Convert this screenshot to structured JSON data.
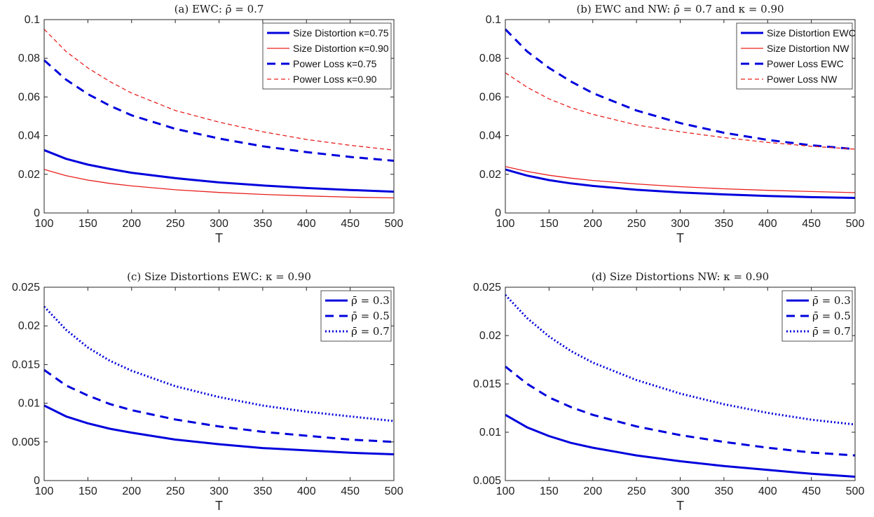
{
  "chart_data": [
    {
      "type": "line",
      "title": "(a) EWC: ρ̄ = 0.7",
      "xlabel": "T",
      "ylabel": "",
      "x": [
        100,
        125,
        150,
        175,
        200,
        250,
        300,
        350,
        400,
        450,
        500
      ],
      "xlim": [
        100,
        500
      ],
      "ylim": [
        0,
        0.1
      ],
      "xticks": [
        "100",
        "150",
        "200",
        "250",
        "300",
        "350",
        "400",
        "450",
        "500"
      ],
      "yticks": [
        "0",
        "0.02",
        "0.04",
        "0.06",
        "0.08",
        "0.1"
      ],
      "legend_position": "top-right",
      "series": [
        {
          "name": "Size Distortion κ=0.75",
          "color": "#0000dd",
          "style": "solid-thick",
          "values": [
            0.0325,
            0.028,
            0.025,
            0.0228,
            0.0208,
            0.018,
            0.0158,
            0.0142,
            0.0129,
            0.0119,
            0.011
          ]
        },
        {
          "name": "Size Distortion κ=0.90",
          "color": "#e8201e",
          "style": "solid-thin",
          "values": [
            0.0225,
            0.0193,
            0.017,
            0.0153,
            0.014,
            0.012,
            0.0106,
            0.0096,
            0.0088,
            0.0082,
            0.0078
          ]
        },
        {
          "name": "Power Loss κ=0.75",
          "color": "#0000dd",
          "style": "dashed-thick",
          "values": [
            0.079,
            0.069,
            0.0615,
            0.0555,
            0.0505,
            0.0435,
            0.0385,
            0.0345,
            0.0315,
            0.029,
            0.027
          ]
        },
        {
          "name": "Power Loss κ=0.90",
          "color": "#e8201e",
          "style": "dashed-thin",
          "values": [
            0.095,
            0.0835,
            0.075,
            0.068,
            0.062,
            0.053,
            0.047,
            0.042,
            0.038,
            0.035,
            0.0325
          ]
        }
      ]
    },
    {
      "type": "line",
      "title": "(b) EWC and NW: ρ̄ = 0.7 and κ = 0.90",
      "xlabel": "T",
      "ylabel": "",
      "x": [
        100,
        125,
        150,
        175,
        200,
        250,
        300,
        350,
        400,
        450,
        500
      ],
      "xlim": [
        100,
        500
      ],
      "ylim": [
        0,
        0.1
      ],
      "xticks": [
        "100",
        "150",
        "200",
        "250",
        "300",
        "350",
        "400",
        "450",
        "500"
      ],
      "yticks": [
        "0",
        "0.02",
        "0.04",
        "0.06",
        "0.08",
        "0.1"
      ],
      "legend_position": "top-right",
      "series": [
        {
          "name": "Size Distortion EWC",
          "color": "#0000dd",
          "style": "solid-thick",
          "values": [
            0.0225,
            0.0193,
            0.017,
            0.0153,
            0.014,
            0.012,
            0.0106,
            0.0096,
            0.0088,
            0.0082,
            0.0078
          ]
        },
        {
          "name": "Size Distortion NW",
          "color": "#e8201e",
          "style": "solid-thin",
          "values": [
            0.024,
            0.0215,
            0.0195,
            0.018,
            0.0168,
            0.015,
            0.0136,
            0.0125,
            0.0117,
            0.0111,
            0.0105
          ]
        },
        {
          "name": "Power Loss EWC",
          "color": "#0000dd",
          "style": "dashed-thick",
          "values": [
            0.095,
            0.0835,
            0.075,
            0.068,
            0.062,
            0.053,
            0.0465,
            0.0415,
            0.0378,
            0.035,
            0.033
          ]
        },
        {
          "name": "Power Loss NW",
          "color": "#e8201e",
          "style": "dashed-thin",
          "values": [
            0.0725,
            0.065,
            0.059,
            0.0545,
            0.051,
            0.0455,
            0.042,
            0.039,
            0.0365,
            0.0345,
            0.033
          ]
        }
      ]
    },
    {
      "type": "line",
      "title": "(c) Size Distortions EWC: κ = 0.90",
      "xlabel": "T",
      "ylabel": "",
      "x": [
        100,
        125,
        150,
        175,
        200,
        250,
        300,
        350,
        400,
        450,
        500
      ],
      "xlim": [
        100,
        500
      ],
      "ylim": [
        0,
        0.025
      ],
      "xticks": [
        "100",
        "150",
        "200",
        "250",
        "300",
        "350",
        "400",
        "450",
        "500"
      ],
      "yticks": [
        "0",
        "0.005",
        "0.01",
        "0.015",
        "0.02",
        "0.025"
      ],
      "legend_position": "top-right",
      "series": [
        {
          "name": "ρ̄ = 0.3",
          "color": "#0000dd",
          "style": "solid-thick",
          "values": [
            0.0097,
            0.0083,
            0.0074,
            0.0067,
            0.0062,
            0.0053,
            0.0047,
            0.0042,
            0.0039,
            0.0036,
            0.0034
          ]
        },
        {
          "name": "ρ̄ = 0.5",
          "color": "#0000dd",
          "style": "dashed-thick",
          "values": [
            0.0143,
            0.0123,
            0.011,
            0.0099,
            0.0091,
            0.0079,
            0.007,
            0.0063,
            0.0058,
            0.0053,
            0.005
          ]
        },
        {
          "name": "ρ̄ = 0.7",
          "color": "#0000dd",
          "style": "dotted-thick",
          "values": [
            0.0225,
            0.0195,
            0.0172,
            0.0155,
            0.0142,
            0.0122,
            0.0108,
            0.0097,
            0.0089,
            0.0083,
            0.0077
          ]
        }
      ]
    },
    {
      "type": "line",
      "title": "(d) Size Distortions NW: κ = 0.90",
      "xlabel": "T",
      "ylabel": "",
      "x": [
        100,
        125,
        150,
        175,
        200,
        250,
        300,
        350,
        400,
        450,
        500
      ],
      "xlim": [
        100,
        500
      ],
      "ylim": [
        0.005,
        0.025
      ],
      "xticks": [
        "100",
        "150",
        "200",
        "250",
        "300",
        "350",
        "400",
        "450",
        "500"
      ],
      "yticks": [
        "0.005",
        "0.01",
        "0.015",
        "0.02",
        "0.025"
      ],
      "legend_position": "top-right",
      "series": [
        {
          "name": "ρ̄ = 0.3",
          "color": "#0000dd",
          "style": "solid-thick",
          "values": [
            0.0118,
            0.0105,
            0.0096,
            0.0089,
            0.0084,
            0.0076,
            0.007,
            0.0065,
            0.0061,
            0.0057,
            0.0054
          ]
        },
        {
          "name": "ρ̄ = 0.5",
          "color": "#0000dd",
          "style": "dashed-thick",
          "values": [
            0.0168,
            0.015,
            0.0136,
            0.0126,
            0.0118,
            0.0106,
            0.0097,
            0.009,
            0.0084,
            0.0079,
            0.0076
          ]
        },
        {
          "name": "ρ̄ = 0.7",
          "color": "#0000dd",
          "style": "dotted-thick",
          "values": [
            0.0242,
            0.0218,
            0.0199,
            0.0184,
            0.0172,
            0.0154,
            0.014,
            0.0129,
            0.012,
            0.0113,
            0.0108
          ]
        }
      ]
    }
  ]
}
